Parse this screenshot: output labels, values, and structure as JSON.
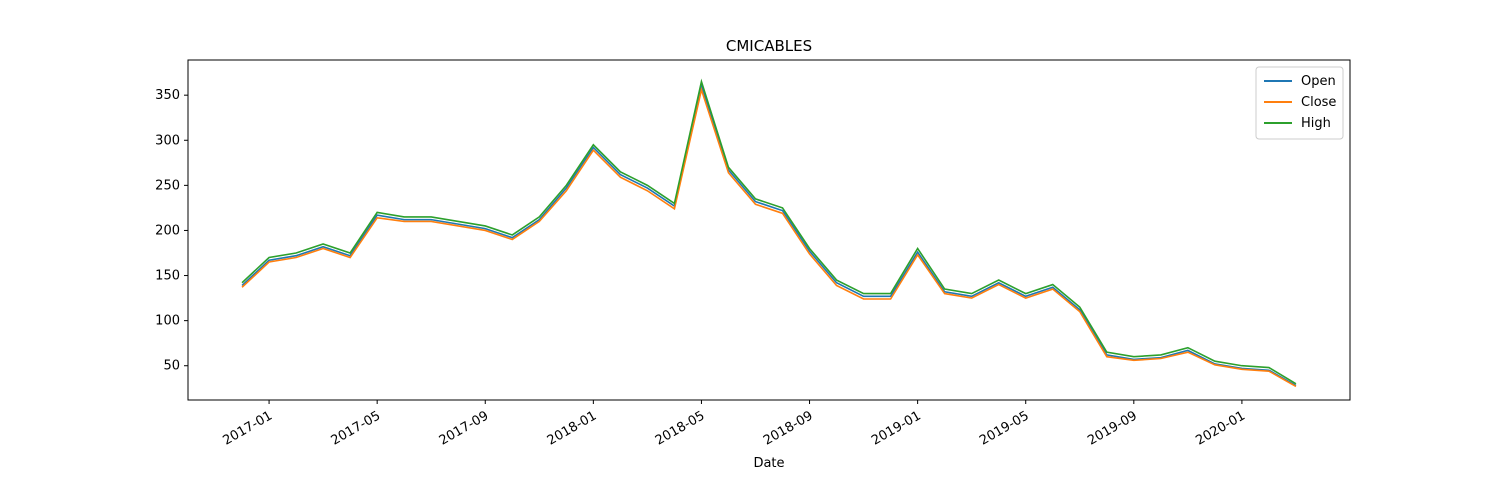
{
  "chart_data": {
    "type": "line",
    "title": "CMICABLES",
    "x_label": "Date",
    "x": [
      "2016-12",
      "2017-01",
      "2017-02",
      "2017-03",
      "2017-04",
      "2017-05",
      "2017-06",
      "2017-07",
      "2017-08",
      "2017-09",
      "2017-10",
      "2017-11",
      "2017-12",
      "2018-01",
      "2018-02",
      "2018-03",
      "2018-04",
      "2018-05",
      "2018-06",
      "2018-07",
      "2018-08",
      "2018-09",
      "2018-10",
      "2018-11",
      "2018-12",
      "2019-01",
      "2019-02",
      "2019-03",
      "2019-04",
      "2019-05",
      "2019-06",
      "2019-07",
      "2019-08",
      "2019-09",
      "2019-10",
      "2019-11",
      "2019-12",
      "2020-01",
      "2020-02",
      "2020-03"
    ],
    "series": [
      {
        "name": "Open",
        "color": "#1f77b4",
        "values": [
          139,
          167,
          172,
          182,
          172,
          217,
          212,
          212,
          207,
          202,
          192,
          212,
          247,
          292,
          262,
          247,
          227,
          360,
          267,
          232,
          222,
          177,
          142,
          127,
          127,
          176,
          132,
          127,
          142,
          127,
          137,
          112,
          62,
          57,
          59,
          67,
          52,
          47,
          45,
          28
        ]
      },
      {
        "name": "Close",
        "color": "#ff7f0e",
        "values": [
          137,
          165,
          170,
          180,
          170,
          214,
          210,
          210,
          205,
          200,
          190,
          210,
          244,
          289,
          259,
          244,
          224,
          356,
          264,
          229,
          219,
          174,
          139,
          124,
          124,
          173,
          130,
          125,
          140,
          125,
          135,
          110,
          60,
          56,
          58,
          65,
          51,
          46,
          44,
          27
        ]
      },
      {
        "name": "High",
        "color": "#2ca02c",
        "values": [
          142,
          170,
          175,
          185,
          175,
          220,
          215,
          215,
          210,
          205,
          195,
          215,
          250,
          295,
          265,
          250,
          230,
          365,
          270,
          235,
          225,
          180,
          145,
          130,
          130,
          180,
          135,
          130,
          145,
          130,
          140,
          115,
          65,
          60,
          62,
          70,
          55,
          50,
          48,
          30
        ]
      }
    ],
    "xlim": [
      "2016-10",
      "2020-05"
    ],
    "xticks": [
      "2017-01",
      "2017-05",
      "2017-09",
      "2018-01",
      "2018-05",
      "2018-09",
      "2019-01",
      "2019-05",
      "2019-09",
      "2020-01"
    ],
    "ylim": [
      12,
      389
    ],
    "yticks": [
      50,
      100,
      150,
      200,
      250,
      300,
      350
    ],
    "legend": "upper right"
  }
}
